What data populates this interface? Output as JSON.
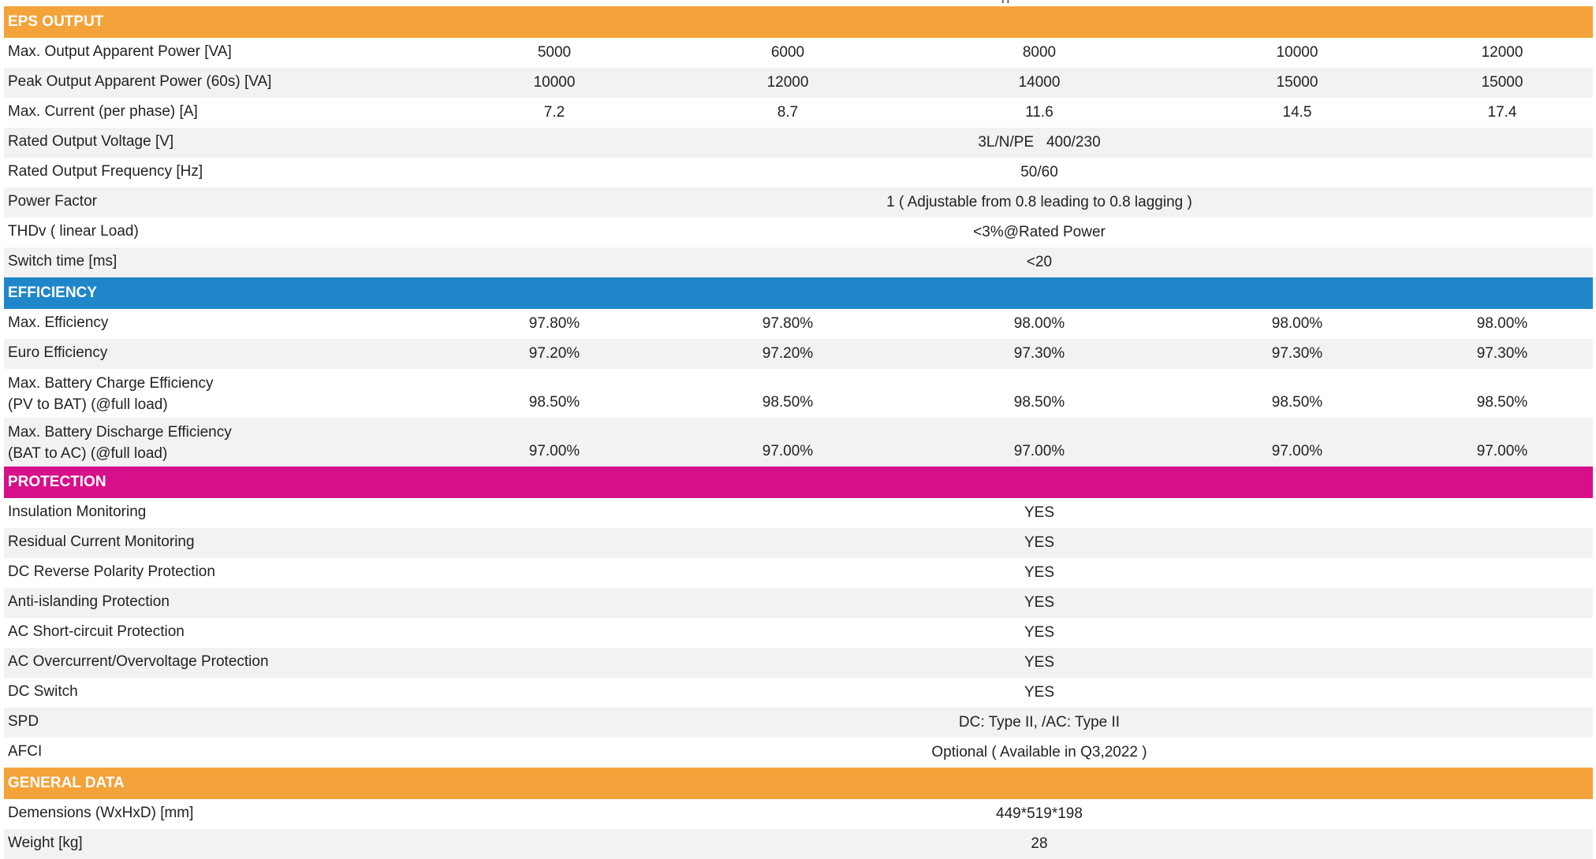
{
  "top_fragment": "g",
  "colors": {
    "eps": "#f4a33a",
    "efficiency": "#1f87c9",
    "protection": "#d80f8a",
    "general": "#f4a33a",
    "row_alt": "#f2f2f2"
  },
  "sections": [
    {
      "key": "eps",
      "title": "EPS OUTPUT",
      "rows": [
        {
          "label": "Max. Output Apparent Power [VA]",
          "values": [
            "5000",
            "6000",
            "8000",
            "10000",
            "12000"
          ]
        },
        {
          "label": "Peak Output Apparent Power (60s) [VA]",
          "values": [
            "10000",
            "12000",
            "14000",
            "15000",
            "15000"
          ]
        },
        {
          "label": "Max. Current (per phase) [A]",
          "values": [
            "7.2",
            "8.7",
            "11.6",
            "14.5",
            "17.4"
          ]
        },
        {
          "label": "Rated Output Voltage [V]",
          "value": "3L/N/PE   400/230"
        },
        {
          "label": "Rated Output Frequency [Hz]",
          "value": "50/60"
        },
        {
          "label": "Power Factor",
          "value": "1 ( Adjustable from 0.8 leading to 0.8 lagging )"
        },
        {
          "label": "THDv ( linear Load)",
          "value": "<3%@Rated Power"
        },
        {
          "label": "Switch time [ms]",
          "value": "<20"
        }
      ]
    },
    {
      "key": "efficiency",
      "title": "EFFICIENCY",
      "rows": [
        {
          "label": "Max. Efficiency",
          "values": [
            "97.80%",
            "97.80%",
            "98.00%",
            "98.00%",
            "98.00%"
          ]
        },
        {
          "label": "Euro Efficiency",
          "values": [
            "97.20%",
            "97.20%",
            "97.30%",
            "97.30%",
            "97.30%"
          ]
        },
        {
          "label": "Max. Battery Charge Efficiency\n(PV to BAT) (@full load)",
          "values": [
            "98.50%",
            "98.50%",
            "98.50%",
            "98.50%",
            "98.50%"
          ]
        },
        {
          "label": "Max. Battery Discharge Efficiency\n(BAT to AC) (@full load)",
          "values": [
            "97.00%",
            "97.00%",
            "97.00%",
            "97.00%",
            "97.00%"
          ]
        }
      ]
    },
    {
      "key": "protection",
      "title": "PROTECTION",
      "rows": [
        {
          "label": "Insulation Monitoring",
          "value": "YES"
        },
        {
          "label": "Residual Current Monitoring",
          "value": "YES"
        },
        {
          "label": "DC Reverse Polarity Protection",
          "value": "YES"
        },
        {
          "label": "Anti-islanding Protection",
          "value": "YES"
        },
        {
          "label": "AC Short-circuit Protection",
          "value": "YES"
        },
        {
          "label": "AC Overcurrent/Overvoltage Protection",
          "value": "YES"
        },
        {
          "label": "DC Switch",
          "value": "YES"
        },
        {
          "label": "SPD",
          "value": "DC: Type II, /AC: Type II"
        },
        {
          "label": "AFCI",
          "value": "Optional ( Available in Q3,2022 )"
        }
      ]
    },
    {
      "key": "general",
      "title": "GENERAL DATA",
      "rows": [
        {
          "label": "Demensions (WxHxD) [mm]",
          "value": "449*519*198"
        },
        {
          "label": "Weight [kg]",
          "value": "28"
        }
      ]
    }
  ]
}
